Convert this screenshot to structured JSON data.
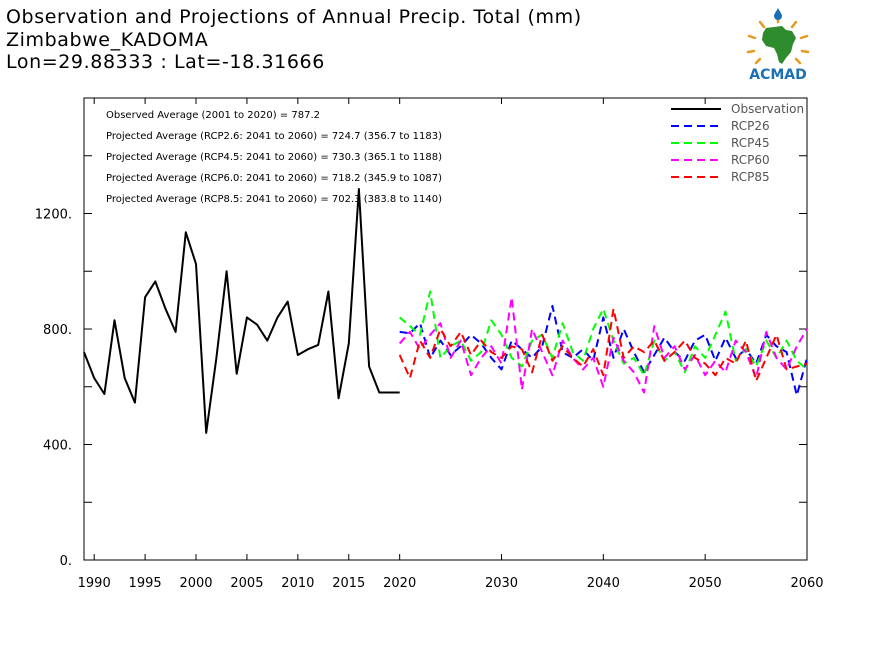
{
  "title": {
    "line1": "Observation and Projections of Annual Precip. Total (mm)",
    "line2": "Zimbabwe_KADOMA",
    "line3": "Lon=29.88333 : Lat=-18.31666"
  },
  "logo": {
    "text": "ACMAD",
    "icon": "africa-map-logo",
    "colors": {
      "text": "#1a6fb5",
      "map": "#2e8b2e",
      "rays": "#e59a1c",
      "drop": "#1a6fb5"
    }
  },
  "stats": [
    "Observed Average (2001 to 2020) = 787.2",
    "Projected Average (RCP2.6: 2041 to 2060) = 724.7 (356.7 to 1183)",
    "Projected Average (RCP4.5: 2041 to 2060) = 730.3 (365.1 to 1188)",
    "Projected Average (RCP6.0: 2041 to 2060) = 718.2 (345.9 to 1087)",
    "Projected Average (RCP8.5: 2041 to 2060) = 702.3 (383.8 to 1140)"
  ],
  "chart_data": {
    "type": "line",
    "xlim": [
      1989,
      2060
    ],
    "ylim": [
      0,
      1600
    ],
    "x_ticks": [
      1990,
      1995,
      2000,
      2005,
      2010,
      2015,
      2020,
      2030,
      2040,
      2050,
      2060
    ],
    "x_tick_labels": [
      "1990",
      "1995",
      "2000",
      "2005",
      "2010",
      "2015",
      "2020",
      "2030",
      "2040",
      "2050",
      "2060"
    ],
    "y_ticks": [
      0,
      400,
      800,
      1200
    ],
    "y_tick_labels": [
      "0.",
      "400.",
      "800.",
      "1200."
    ],
    "y_minor_ticks": [
      200,
      600,
      1000,
      1400
    ],
    "legend_position": "top-right",
    "series": [
      {
        "name": "Observation",
        "color": "#000000",
        "dashed": false,
        "x": [
          1989,
          1990,
          1991,
          1992,
          1993,
          1994,
          1995,
          1996,
          1997,
          1998,
          1999,
          2000,
          2001,
          2002,
          2003,
          2004,
          2005,
          2006,
          2007,
          2008,
          2009,
          2010,
          2011,
          2012,
          2013,
          2014,
          2015,
          2016,
          2017,
          2018,
          2019,
          2020
        ],
        "y": [
          720,
          630,
          575,
          830,
          630,
          545,
          910,
          965,
          870,
          790,
          1135,
          1025,
          440,
          700,
          1000,
          645,
          840,
          815,
          760,
          840,
          895,
          710,
          730,
          745,
          930,
          560,
          750,
          1285,
          670,
          580,
          580,
          580
        ]
      },
      {
        "name": "RCP26",
        "color": "#0000ff",
        "dashed": true,
        "x": [
          2020,
          2021,
          2022,
          2023,
          2024,
          2025,
          2026,
          2027,
          2028,
          2029,
          2030,
          2031,
          2032,
          2033,
          2034,
          2035,
          2036,
          2037,
          2038,
          2039,
          2040,
          2041,
          2042,
          2043,
          2044,
          2045,
          2046,
          2047,
          2048,
          2049,
          2050,
          2051,
          2052,
          2053,
          2054,
          2055,
          2056,
          2057,
          2058,
          2059,
          2060
        ],
        "y": [
          790,
          785,
          820,
          700,
          760,
          710,
          740,
          780,
          750,
          700,
          660,
          760,
          730,
          700,
          740,
          880,
          720,
          700,
          730,
          690,
          840,
          700,
          800,
          720,
          650,
          710,
          770,
          720,
          690,
          760,
          780,
          690,
          770,
          700,
          730,
          680,
          780,
          740,
          720,
          570,
          700
        ]
      },
      {
        "name": "RCP45",
        "color": "#00ff00",
        "dashed": true,
        "x": [
          2020,
          2021,
          2022,
          2023,
          2024,
          2025,
          2026,
          2027,
          2028,
          2029,
          2030,
          2031,
          2032,
          2033,
          2034,
          2035,
          2036,
          2037,
          2038,
          2039,
          2040,
          2041,
          2042,
          2043,
          2044,
          2045,
          2046,
          2047,
          2048,
          2049,
          2050,
          2051,
          2052,
          2053,
          2054,
          2055,
          2056,
          2057,
          2058,
          2059,
          2060
        ],
        "y": [
          840,
          810,
          780,
          930,
          700,
          740,
          760,
          690,
          720,
          830,
          780,
          700,
          670,
          760,
          780,
          700,
          820,
          720,
          690,
          800,
          870,
          760,
          680,
          700,
          640,
          760,
          690,
          720,
          650,
          740,
          700,
          780,
          860,
          690,
          730,
          670,
          760,
          700,
          760,
          690,
          660
        ]
      },
      {
        "name": "RCP60",
        "color": "#ff00ff",
        "dashed": true,
        "x": [
          2020,
          2021,
          2022,
          2023,
          2024,
          2025,
          2026,
          2027,
          2028,
          2029,
          2030,
          2031,
          2032,
          2033,
          2034,
          2035,
          2036,
          2037,
          2038,
          2039,
          2040,
          2041,
          2042,
          2043,
          2044,
          2045,
          2046,
          2047,
          2048,
          2049,
          2050,
          2051,
          2052,
          2053,
          2054,
          2055,
          2056,
          2057,
          2058,
          2059,
          2060
        ],
        "y": [
          750,
          790,
          730,
          780,
          820,
          700,
          760,
          640,
          700,
          740,
          680,
          910,
          590,
          800,
          720,
          640,
          760,
          700,
          660,
          700,
          600,
          770,
          690,
          650,
          580,
          810,
          700,
          740,
          660,
          710,
          640,
          690,
          650,
          760,
          720,
          630,
          790,
          700,
          660,
          740,
          800
        ]
      },
      {
        "name": "RCP85",
        "color": "#ff0000",
        "dashed": true,
        "x": [
          2020,
          2021,
          2022,
          2023,
          2024,
          2025,
          2026,
          2027,
          2028,
          2029,
          2030,
          2031,
          2032,
          2033,
          2034,
          2035,
          2036,
          2037,
          2038,
          2039,
          2040,
          2041,
          2042,
          2043,
          2044,
          2045,
          2046,
          2047,
          2048,
          2049,
          2050,
          2051,
          2052,
          2053,
          2054,
          2055,
          2056,
          2057,
          2058,
          2059,
          2060
        ],
        "y": [
          710,
          630,
          760,
          700,
          800,
          740,
          790,
          710,
          760,
          720,
          700,
          740,
          730,
          650,
          780,
          690,
          740,
          700,
          670,
          730,
          640,
          870,
          700,
          740,
          720,
          760,
          690,
          720,
          760,
          700,
          680,
          640,
          700,
          680,
          760,
          620,
          700,
          780,
          660,
          670,
          680
        ]
      }
    ]
  }
}
